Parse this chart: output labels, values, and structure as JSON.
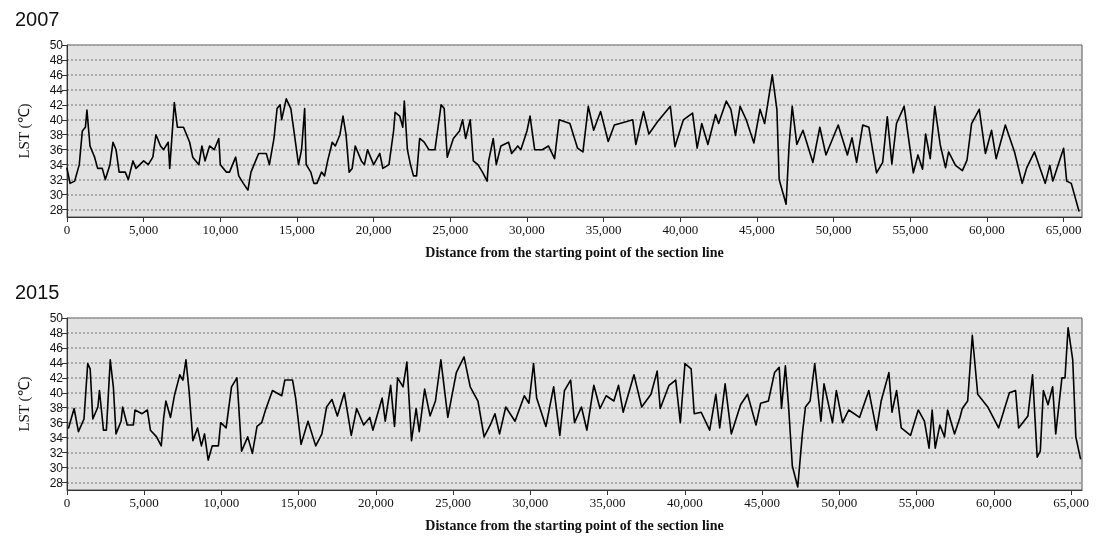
{
  "chart_data": [
    {
      "type": "line",
      "title": "2007",
      "xlabel": "Distance from the starting point of the section line",
      "ylabel": "LST (℃)",
      "xlim": [
        0,
        66200
      ],
      "ylim": [
        27,
        50
      ],
      "xticks": [
        0,
        {
          "value": 5000,
          "label": "5,000"
        },
        {
          "value": 10000,
          "label": "10,000"
        },
        {
          "value": 15000,
          "label": "15,000"
        },
        {
          "value": 20000,
          "label": "20,000"
        },
        {
          "value": 25000,
          "label": "25,000"
        },
        {
          "value": 30000,
          "label": "30,000"
        },
        {
          "value": 35000,
          "label": "35,000"
        },
        {
          "value": 40000,
          "label": "40,000"
        },
        {
          "value": 45000,
          "label": "45,000"
        },
        {
          "value": 50000,
          "label": "50,000"
        },
        {
          "value": 55000,
          "label": "55,000"
        },
        {
          "value": 60000,
          "label": "60,000"
        },
        {
          "value": 65000,
          "label": "65,000"
        }
      ],
      "yticks": [
        28,
        30,
        32,
        34,
        36,
        38,
        40,
        42,
        44,
        46,
        48,
        50
      ],
      "grid": "y",
      "marker": "none",
      "line_style": "solid",
      "series": [
        {
          "color": "#000000",
          "x": [
            0,
            200,
            500,
            800,
            1000,
            1200,
            1300,
            1500,
            1800,
            2000,
            2300,
            2500,
            2800,
            3000,
            3200,
            3400,
            3800,
            4000,
            4300,
            4500,
            5000,
            5300,
            5600,
            5800,
            6100,
            6300,
            6600,
            6700,
            7000,
            7200,
            7600,
            8000,
            8200,
            8600,
            8800,
            9000,
            9300,
            9600,
            9900,
            10000,
            10400,
            10600,
            11000,
            11200,
            11500,
            11800,
            12000,
            12300,
            12500,
            12800,
            13000,
            13200,
            13500,
            13700,
            13900,
            14000,
            14300,
            14600,
            14900,
            15100,
            15300,
            15500,
            15600,
            15900,
            16100,
            16300,
            16600,
            16800,
            17000,
            17300,
            17500,
            17800,
            18000,
            18200,
            18400,
            18600,
            18800,
            19200,
            19400,
            19600,
            20000,
            20400,
            20600,
            21000,
            21300,
            21400,
            21700,
            21900,
            22000,
            22200,
            22400,
            22600,
            22800,
            23000,
            23300,
            23600,
            24000,
            24200,
            24400,
            24600,
            24800,
            25200,
            25600,
            25800,
            26000,
            26300,
            26500,
            26800,
            27100,
            27400,
            27500,
            27800,
            28000,
            28300,
            28800,
            29000,
            29400,
            29600,
            30000,
            30200,
            30500,
            31000,
            31400,
            31800,
            32100,
            32800,
            33300,
            33650,
            34000,
            34350,
            34800,
            35300,
            35700,
            36400,
            36900,
            37100,
            37600,
            37950,
            38500,
            39350,
            39650,
            40200,
            40800,
            41100,
            41400,
            41800,
            42300,
            42500,
            43000,
            43300,
            43600,
            43900,
            44300,
            44800,
            45200,
            45500,
            46000,
            46300,
            46450,
            46900,
            47100,
            47300,
            47600,
            48000,
            48650,
            49100,
            49500,
            50300,
            50900,
            51200,
            51500,
            51900,
            52300,
            52800,
            53200,
            53500,
            53800,
            54100,
            54600,
            55200,
            55500,
            55800,
            56000,
            56300,
            56600,
            56950,
            57300,
            57500,
            57950,
            58400,
            58700,
            59000,
            59500,
            59900,
            60300,
            60600,
            61200,
            61800,
            62300,
            62600,
            63100,
            63800,
            64100,
            64300,
            65000,
            65200,
            65500,
            66000
          ],
          "values": [
            33.5,
            31.5,
            31.8,
            34,
            38.5,
            39,
            41.3,
            36.5,
            35,
            33.5,
            33.5,
            32,
            34,
            37,
            36,
            33,
            33,
            32,
            34.5,
            33.5,
            34.5,
            34,
            35,
            38,
            36.5,
            36,
            37,
            33.5,
            42.3,
            39,
            39,
            37,
            35,
            34,
            36.5,
            34.5,
            36.5,
            36,
            37.5,
            34,
            33,
            33,
            35,
            32.5,
            31.5,
            30.6,
            33,
            34.5,
            35.5,
            35.5,
            35.5,
            34,
            37.5,
            41.5,
            42,
            40,
            42.8,
            41.5,
            37,
            34,
            36,
            41.5,
            34,
            33,
            31.5,
            31.5,
            33,
            32.5,
            34.5,
            37,
            36.5,
            38,
            40.5,
            38,
            33,
            33.5,
            36.5,
            34.5,
            34,
            36,
            34,
            35.5,
            33.5,
            34,
            38.5,
            41,
            40.5,
            39,
            42.5,
            36,
            34,
            32.5,
            32.5,
            37.5,
            37,
            36,
            36,
            39,
            42,
            41.5,
            35,
            37.5,
            38.5,
            40,
            37.5,
            40,
            34.5,
            34,
            33,
            31.8,
            34.5,
            37.5,
            34,
            36.5,
            37,
            35.5,
            36.5,
            36,
            38.5,
            40.5,
            36,
            36,
            36.5,
            34.8,
            40,
            39.5,
            36.2,
            35.7,
            41.8,
            38.6,
            41.1,
            37.1,
            39.3,
            39.7,
            40,
            36.7,
            41.1,
            38.1,
            39.7,
            41.8,
            36.4,
            40,
            40.9,
            36.2,
            39.5,
            36.7,
            40.7,
            39.5,
            42.5,
            41.4,
            37.9,
            41.8,
            40,
            36.9,
            41.4,
            39.5,
            46,
            41.4,
            32,
            28.7,
            36.7,
            41.8,
            36.7,
            38.6,
            34.3,
            39,
            35.3,
            39.3,
            35.3,
            37.6,
            34.3,
            39.3,
            39,
            32.9,
            34.3,
            40.4,
            34.1,
            39.5,
            41.8,
            32.9,
            35.3,
            33.4,
            38.1,
            34.8,
            41.8,
            36.7,
            33.6,
            35.7,
            33.9,
            33.2,
            34.6,
            39.5,
            41.4,
            35.5,
            38.6,
            34.8,
            39.3,
            35.7,
            31.5,
            33.6,
            35.7,
            31.5,
            33.9,
            31.8,
            36.2,
            31.8,
            31.5,
            27.8
          ]
        }
      ]
    },
    {
      "type": "line",
      "title": "2015",
      "xlabel": "Distance from the starting point of the section line",
      "ylabel": "LST (℃)",
      "xlim": [
        0,
        65700
      ],
      "ylim": [
        27,
        50
      ],
      "xticks": [
        0,
        {
          "value": 5000,
          "label": "5,000"
        },
        {
          "value": 10000,
          "label": "10,000"
        },
        {
          "value": 15000,
          "label": "15,000"
        },
        {
          "value": 20000,
          "label": "20,000"
        },
        {
          "value": 25000,
          "label": "25,000"
        },
        {
          "value": 30000,
          "label": "30,000"
        },
        {
          "value": 35000,
          "label": "35,000"
        },
        {
          "value": 40000,
          "label": "40,000"
        },
        {
          "value": 45000,
          "label": "45,000"
        },
        {
          "value": 50000,
          "label": "50,000"
        },
        {
          "value": 55000,
          "label": "55,000"
        },
        {
          "value": 60000,
          "label": "60,000"
        },
        {
          "value": 65000,
          "label": "65,000"
        }
      ],
      "yticks": [
        28,
        30,
        32,
        34,
        36,
        38,
        40,
        42,
        44,
        46,
        48,
        50
      ],
      "grid": "y",
      "marker": "none",
      "line_style": "solid",
      "series": [
        {
          "color": "#000000",
          "x": [
            100,
            460,
            740,
            1100,
            1340,
            1500,
            1670,
            2000,
            2100,
            2360,
            2550,
            2800,
            3000,
            3170,
            3500,
            3600,
            3900,
            4300,
            4400,
            4860,
            5200,
            5400,
            5800,
            6100,
            6250,
            6400,
            6700,
            6950,
            7300,
            7500,
            7700,
            7900,
            8150,
            8450,
            8700,
            8900,
            9140,
            9400,
            9800,
            9950,
            10300,
            10650,
            11000,
            11300,
            11700,
            12000,
            12300,
            12600,
            12850,
            13300,
            13900,
            14100,
            14600,
            14800,
            15150,
            15600,
            16100,
            16500,
            16800,
            17150,
            17500,
            17950,
            18400,
            18750,
            19200,
            19600,
            19800,
            20400,
            20600,
            20950,
            21200,
            21400,
            21750,
            22000,
            22300,
            22600,
            22800,
            23150,
            23500,
            23850,
            24200,
            24650,
            25200,
            25700,
            26100,
            26600,
            27000,
            27400,
            27700,
            28000,
            28400,
            29000,
            29600,
            29900,
            30200,
            30400,
            31000,
            31500,
            31900,
            32200,
            32600,
            32850,
            33300,
            33650,
            34100,
            34500,
            34900,
            35400,
            35700,
            36000,
            36700,
            37200,
            37800,
            38200,
            38400,
            38970,
            39400,
            39700,
            40000,
            40400,
            40600,
            41050,
            41600,
            42000,
            42250,
            42600,
            43000,
            43600,
            44050,
            44600,
            44900,
            45400,
            45800,
            46100,
            46250,
            46500,
            46700,
            46950,
            47300,
            47600,
            47800,
            48100,
            48400,
            48800,
            49000,
            49550,
            49800,
            50200,
            50600,
            51300,
            51900,
            52400,
            52700,
            53200,
            53400,
            53700,
            54000,
            54600,
            55100,
            55500,
            55800,
            56000,
            56200,
            56500,
            56800,
            57000,
            57450,
            57800,
            57950,
            58300,
            58600,
            58950,
            59600,
            60300,
            61000,
            61400,
            61600,
            62200,
            62500,
            62800,
            63000,
            63200,
            63500,
            63800,
            64000,
            64400,
            64600,
            64800,
            65100,
            65300,
            65600
          ],
          "values": [
            35.3,
            37.9,
            34.8,
            36.5,
            43.9,
            43.2,
            36.5,
            38.1,
            40.3,
            35,
            35,
            44.4,
            40.8,
            34.5,
            36.2,
            38.1,
            35.7,
            35.7,
            37.7,
            37.2,
            37.7,
            35,
            34.1,
            32.9,
            36.5,
            38.9,
            36.7,
            39.6,
            42.4,
            41.7,
            44.4,
            40.3,
            33.6,
            35.3,
            32.9,
            34.5,
            31,
            32.9,
            32.9,
            36,
            35.3,
            40.8,
            42,
            32.2,
            34.1,
            31.9,
            35.5,
            36,
            37.7,
            40.3,
            39.6,
            41.7,
            41.7,
            39.3,
            33.1,
            36.2,
            32.9,
            34.5,
            38.1,
            39.1,
            36.9,
            40,
            34.3,
            37.9,
            35.7,
            36.7,
            35,
            39.3,
            36.2,
            41,
            35.5,
            42,
            40.8,
            44.1,
            33.6,
            37.9,
            34.8,
            40.5,
            36.9,
            38.9,
            44.4,
            36.7,
            42.7,
            44.8,
            40.8,
            38.9,
            34.1,
            35.7,
            37.2,
            34.5,
            38.1,
            36.2,
            39.6,
            38.6,
            43.9,
            39.3,
            35.5,
            40.8,
            34.3,
            40.3,
            41.7,
            36,
            38.1,
            35,
            41,
            37.9,
            39.6,
            38.9,
            41,
            37.4,
            42.4,
            38.1,
            39.8,
            42.9,
            37.9,
            41,
            41.7,
            36,
            43.9,
            43.2,
            37.2,
            37.4,
            35,
            39.8,
            35.3,
            41.2,
            34.5,
            38.4,
            39.8,
            35.7,
            38.6,
            38.9,
            42.7,
            43.4,
            37.9,
            43.6,
            38.4,
            30.2,
            27.4,
            34.5,
            38.1,
            38.9,
            43.9,
            36.2,
            41.2,
            36,
            40.3,
            36,
            37.7,
            36.7,
            40.3,
            35,
            38.9,
            42.7,
            37.4,
            40.3,
            35.3,
            34.3,
            37.7,
            36.2,
            32.6,
            37.7,
            32.6,
            35.7,
            34.1,
            37.7,
            34.5,
            36.7,
            37.9,
            38.9,
            47.7,
            39.8,
            38.1,
            35.3,
            40,
            40.3,
            35.3,
            36.9,
            42.4,
            31.4,
            32.2,
            40.3,
            38.4,
            40.8,
            34.5,
            42,
            42,
            48.7,
            44.4,
            34.1,
            31.2
          ]
        }
      ]
    }
  ]
}
